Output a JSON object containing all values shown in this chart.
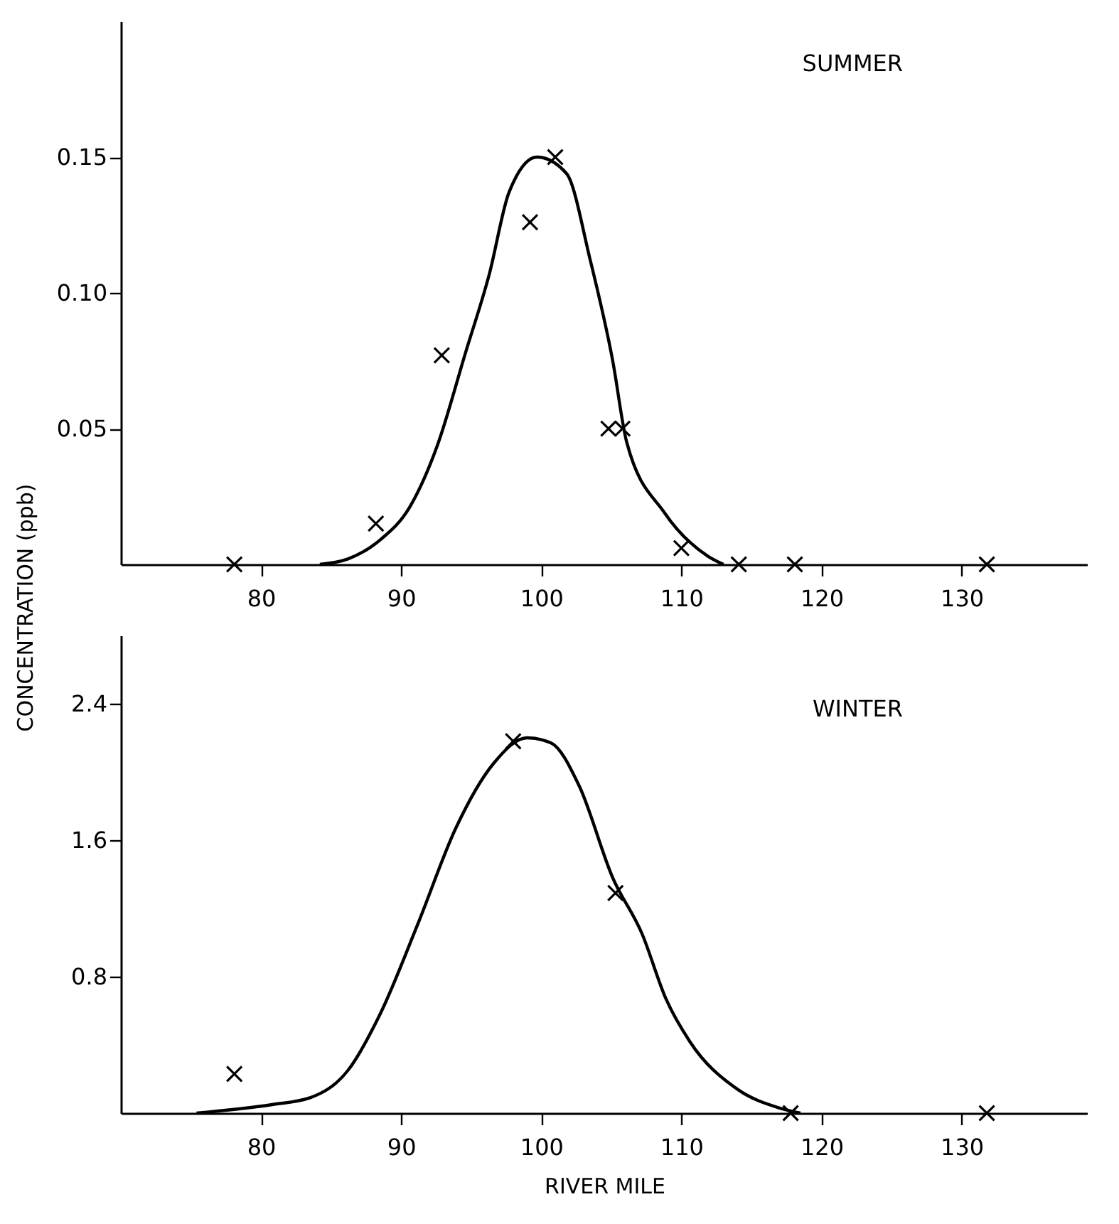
{
  "chart_data": [
    {
      "type": "scatter",
      "title": "SUMMER",
      "ylabel": "CONCENTRATION (ppb)",
      "xlim": [
        70,
        139
      ],
      "xticks": [
        80,
        90,
        100,
        110,
        120,
        130
      ],
      "ylim": [
        0,
        0.2
      ],
      "yticks": [
        0.05,
        {
          "value": 0.1,
          "label": "0.10"
        },
        0.15
      ],
      "series": [
        {
          "marker": "cross",
          "color": "#000000",
          "x": [
            78.1,
            88.2,
            92.9,
            99.2,
            101.0,
            104.8,
            105.8,
            110.0,
            114.1,
            118.1,
            131.8
          ],
          "values": [
            0,
            0.015,
            0.077,
            0.126,
            0.15,
            0.05,
            0.05,
            0.006,
            0,
            0,
            0
          ]
        },
        {
          "type": "line",
          "color": "#000000",
          "x": [
            84.2,
            86.2,
            88.5,
            90.6,
            92.6,
            94.6,
            96.3,
            97.7,
            99.7,
            101.8,
            103.5,
            105.1,
            106.1,
            108.8,
            111.9,
            113
          ],
          "values": [
            0,
            0.002,
            0.009,
            0.021,
            0.044,
            0.078,
            0.107,
            0.137,
            0.15,
            0.144,
            0.112,
            0.075,
            0.045,
            0.019,
            0.003,
            0
          ]
        }
      ]
    },
    {
      "type": "scatter",
      "title": "WINTER",
      "xlabel": "RIVER MILE",
      "xlim": [
        70,
        139
      ],
      "xticks": [
        80,
        90,
        100,
        110,
        120,
        130
      ],
      "ylim": [
        0,
        2.8
      ],
      "yticks": [
        0.8,
        1.6,
        2.4
      ],
      "series": [
        {
          "marker": "cross",
          "color": "#000000",
          "x": [
            78.1,
            98.0,
            105.3,
            117.8,
            131.8
          ],
          "values": [
            0.23,
            2.18,
            1.29,
            0,
            0
          ]
        },
        {
          "type": "line",
          "color": "#000000",
          "x": [
            75.4,
            80.8,
            83.5,
            86.2,
            88.5,
            91.2,
            93.9,
            96.6,
            99.0,
            100.7,
            102.7,
            105.1,
            107.2,
            108.9,
            110.6,
            114.0,
            117.0,
            118.5
          ],
          "values": [
            0,
            0.05,
            0.09,
            0.25,
            0.58,
            1.11,
            1.67,
            2.05,
            2.2,
            2.17,
            1.92,
            1.38,
            1.05,
            0.67,
            0.42,
            0.14,
            0.03,
            0
          ]
        }
      ]
    }
  ]
}
